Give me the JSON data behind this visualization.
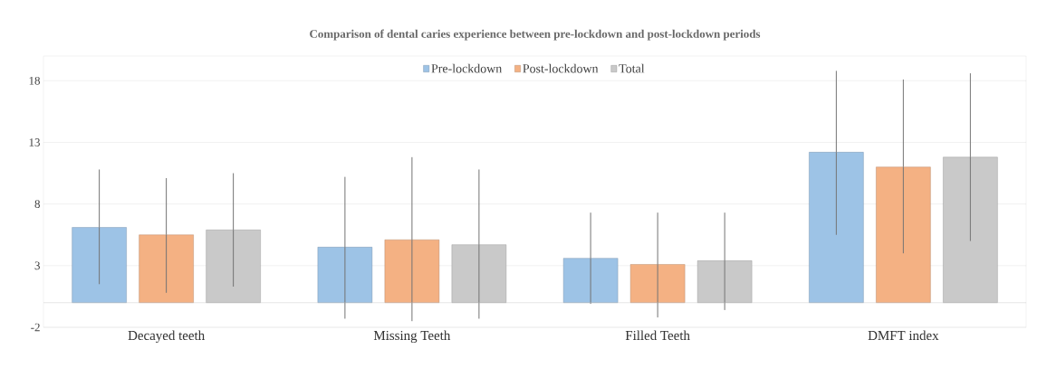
{
  "chart_data": {
    "type": "bar",
    "title": "Comparison of dental caries experience between pre-lockdown and post-lockdown periods",
    "categories": [
      "Decayed teeth",
      "Missing Teeth",
      "Filled Teeth",
      "DMFT index"
    ],
    "series": [
      {
        "name": "Pre-lockdown",
        "color": "#9dc3e6",
        "values": [
          6.1,
          4.5,
          3.6,
          12.2
        ],
        "errors": [
          [
            1.5,
            10.8
          ],
          [
            -1.3,
            10.2
          ],
          [
            -0.1,
            7.3
          ],
          [
            5.5,
            18.8
          ]
        ]
      },
      {
        "name": "Post-lockdown",
        "color": "#f4b183",
        "values": [
          5.5,
          5.1,
          3.1,
          11.0
        ],
        "errors": [
          [
            0.8,
            10.1
          ],
          [
            -1.5,
            11.8
          ],
          [
            -1.2,
            7.3
          ],
          [
            4.0,
            18.1
          ]
        ]
      },
      {
        "name": "Total",
        "color": "#c9c9c9",
        "values": [
          5.9,
          4.7,
          3.4,
          11.8
        ],
        "errors": [
          [
            1.3,
            10.5
          ],
          [
            -1.3,
            10.8
          ],
          [
            -0.6,
            7.3
          ],
          [
            5.0,
            18.6
          ]
        ]
      }
    ],
    "ylim": [
      -2,
      20
    ],
    "yticks": [
      -2,
      3,
      8,
      13,
      18
    ],
    "grid": "y",
    "legend": "top"
  }
}
